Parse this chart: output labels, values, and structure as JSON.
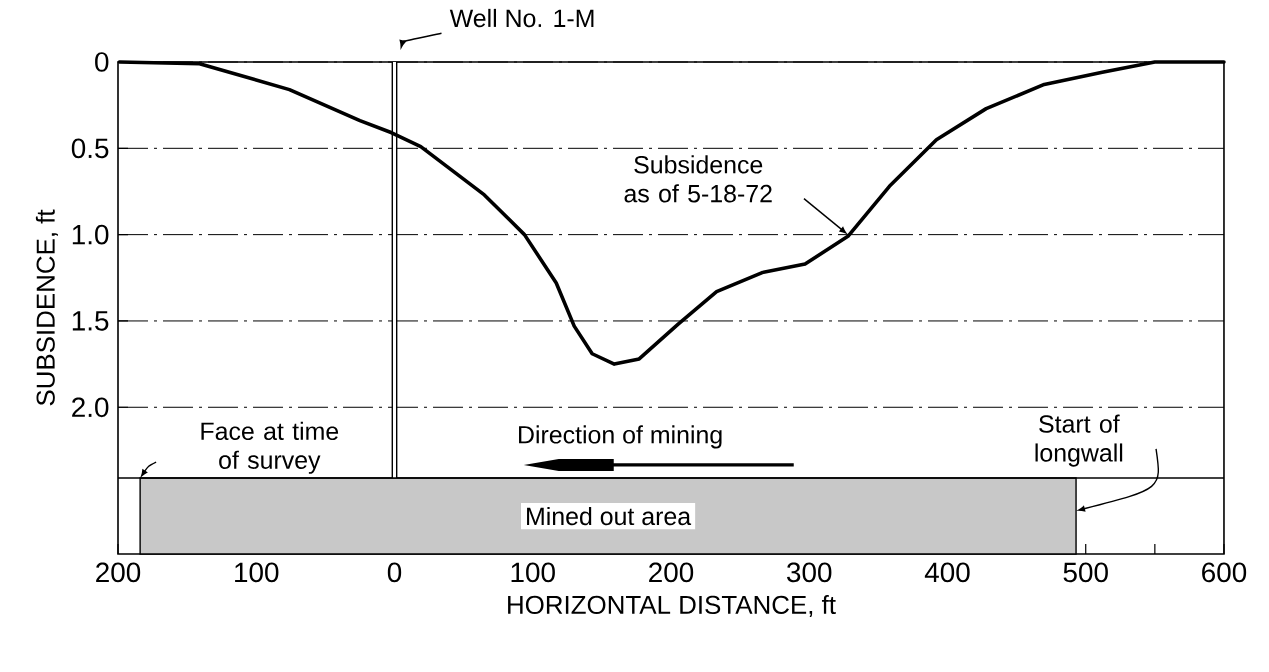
{
  "chart_data": {
    "type": "line",
    "xlabel": "HORIZONTAL DISTANCE, ft",
    "ylabel": "SUBSIDENCE, ft",
    "x": [
      -199,
      -141,
      -76,
      -25,
      -2,
      19,
      65,
      94,
      117,
      130,
      143,
      159,
      177,
      205,
      233,
      266,
      297,
      328,
      358,
      392,
      428,
      470,
      512,
      550,
      600
    ],
    "series": [
      {
        "color": "#000000",
        "values": [
          0,
          0.01,
          0.16,
          0.34,
          0.41,
          0.49,
          0.77,
          1.0,
          1.28,
          1.53,
          1.69,
          1.75,
          1.72,
          1.52,
          1.33,
          1.22,
          1.17,
          1.01,
          0.72,
          0.45,
          0.27,
          0.13,
          0.06,
          0,
          0
        ]
      }
    ],
    "xlim": [
      -200,
      600
    ],
    "ylim": [
      2.85,
      0
    ],
    "xticks": [
      {
        "value": -200,
        "label": "200"
      },
      {
        "value": -150,
        "label": null
      },
      {
        "value": -100,
        "label": "100"
      },
      {
        "value": -50,
        "label": null
      },
      0,
      {
        "value": 50,
        "label": null
      },
      100,
      {
        "value": 150,
        "label": null
      },
      200,
      {
        "value": 250,
        "label": null
      },
      300,
      {
        "value": 350,
        "label": null
      },
      400,
      {
        "value": 450,
        "label": null
      },
      500,
      {
        "value": 550,
        "label": null
      },
      600
    ],
    "yticks": [
      0,
      0.5,
      {
        "value": 1,
        "label": "1.0"
      },
      1.5,
      {
        "value": 2,
        "label": "2.0"
      }
    ],
    "grid": "y",
    "marker": "none",
    "line_style": "solid",
    "ref_lines": [
      {
        "axis": "x",
        "value": 0,
        "label": "Well No. 1-M"
      },
      {
        "axis": "y",
        "value": 2.41
      }
    ],
    "bands": [
      {
        "axis": "x",
        "from": -184,
        "to": 493,
        "label": "Mined out area",
        "color": "#c8c8c8"
      }
    ],
    "annotations": [
      {
        "text": "Subsidence as of 5-18-72",
        "x": 328,
        "y": 1.0
      },
      {
        "text": "Face at time of survey",
        "x": -184,
        "y": 2.41
      },
      {
        "text": "Start of longwall",
        "x": 493,
        "y": 2.6
      },
      "Direction of mining"
    ]
  }
}
